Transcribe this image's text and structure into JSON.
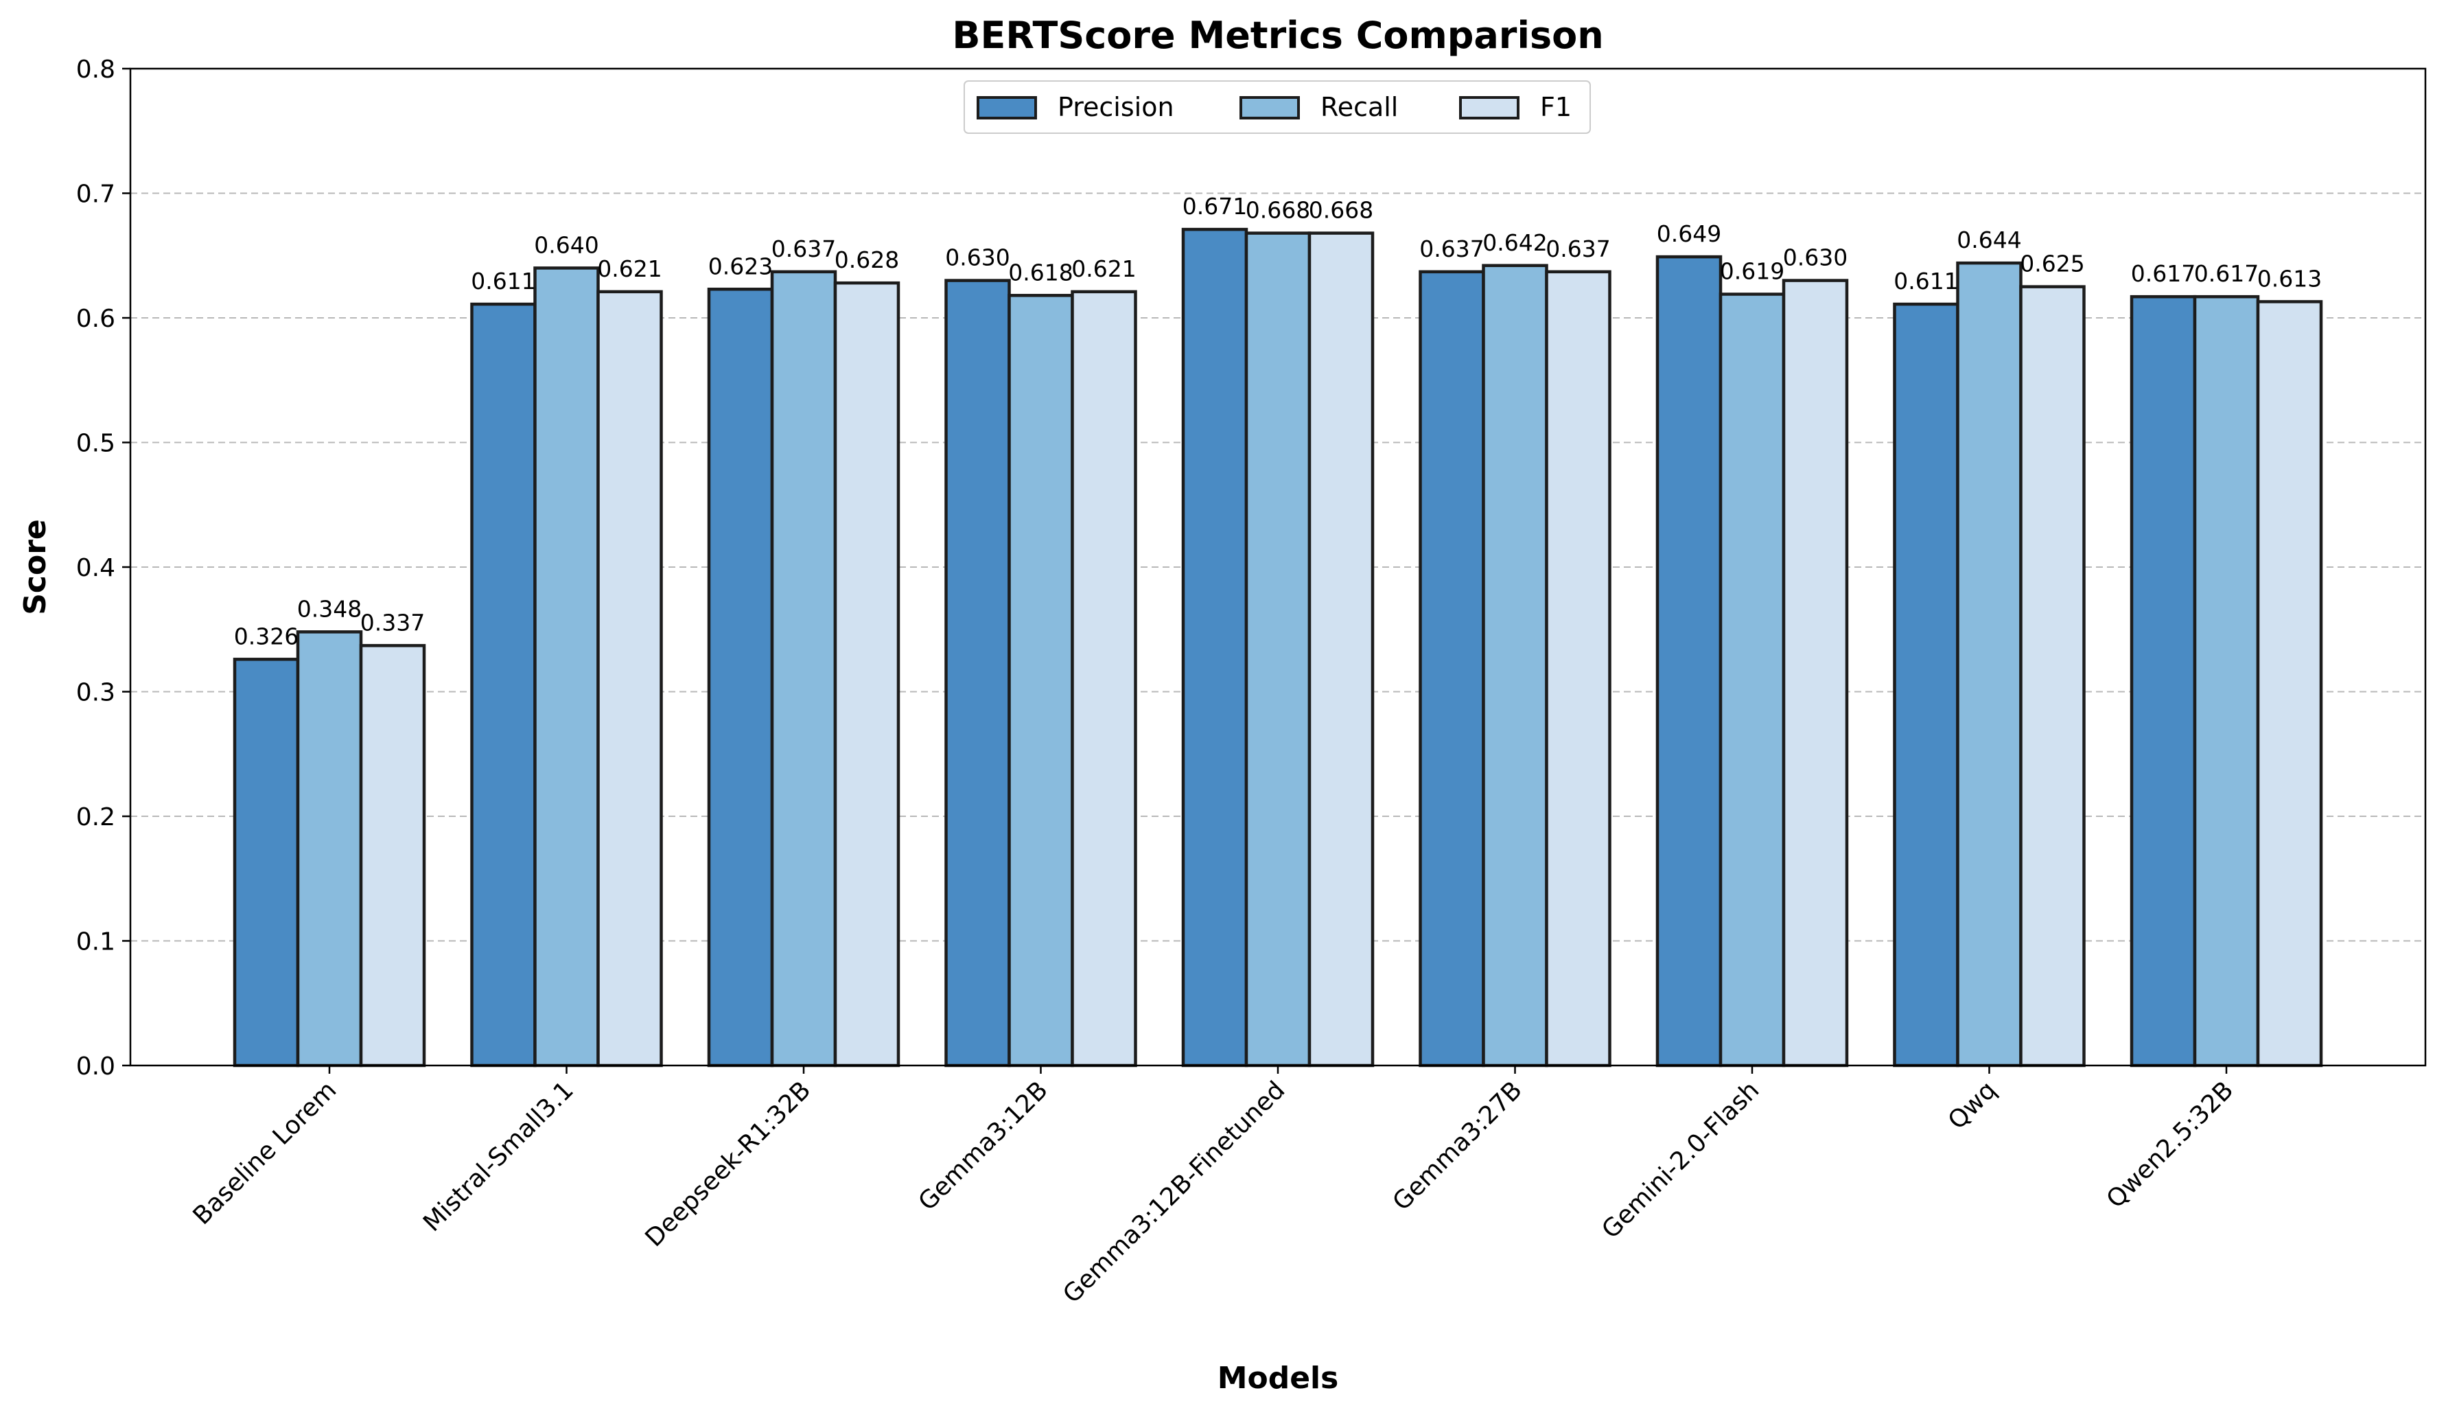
{
  "chart_data": {
    "type": "bar",
    "title": "BERTScore Metrics Comparison",
    "xlabel": "Models",
    "ylabel": "Score",
    "ylim": [
      0,
      0.8
    ],
    "yticks": [
      "0.0",
      "0.1",
      "0.2",
      "0.3",
      "0.4",
      "0.5",
      "0.6",
      "0.7",
      "0.8"
    ],
    "grid": "horizontal dashed",
    "legend_position": "top-center",
    "categories": [
      "Baseline Lorem",
      "Mistral-Small3.1",
      "Deepseek-R1:32B",
      "Gemma3:12B",
      "Gemma3:12B-Finetuned",
      "Gemma3:27B",
      "Gemini-2.0-Flash",
      "Qwq",
      "Qwen2.5:32B"
    ],
    "series": [
      {
        "name": "Precision",
        "color": "#4a8bc4",
        "values": [
          0.326,
          0.611,
          0.623,
          0.63,
          0.671,
          0.637,
          0.649,
          0.611,
          0.617
        ],
        "labels": [
          "0.326",
          "0.611",
          "0.623",
          "0.630",
          "0.671",
          "0.637",
          "0.649",
          "0.611",
          "0.617"
        ]
      },
      {
        "name": "Recall",
        "color": "#89bbdd",
        "values": [
          0.348,
          0.64,
          0.637,
          0.618,
          0.668,
          0.642,
          0.619,
          0.644,
          0.617
        ],
        "labels": [
          "0.348",
          "0.640",
          "0.637",
          "0.618",
          "0.668",
          "0.642",
          "0.619",
          "0.644",
          "0.617"
        ]
      },
      {
        "name": "F1",
        "color": "#d1e1f1",
        "values": [
          0.337,
          0.621,
          0.628,
          0.621,
          0.668,
          0.637,
          0.63,
          0.625,
          0.613
        ],
        "labels": [
          "0.337",
          "0.621",
          "0.628",
          "0.621",
          "0.668",
          "0.637",
          "0.630",
          "0.625",
          "0.613"
        ]
      }
    ]
  }
}
